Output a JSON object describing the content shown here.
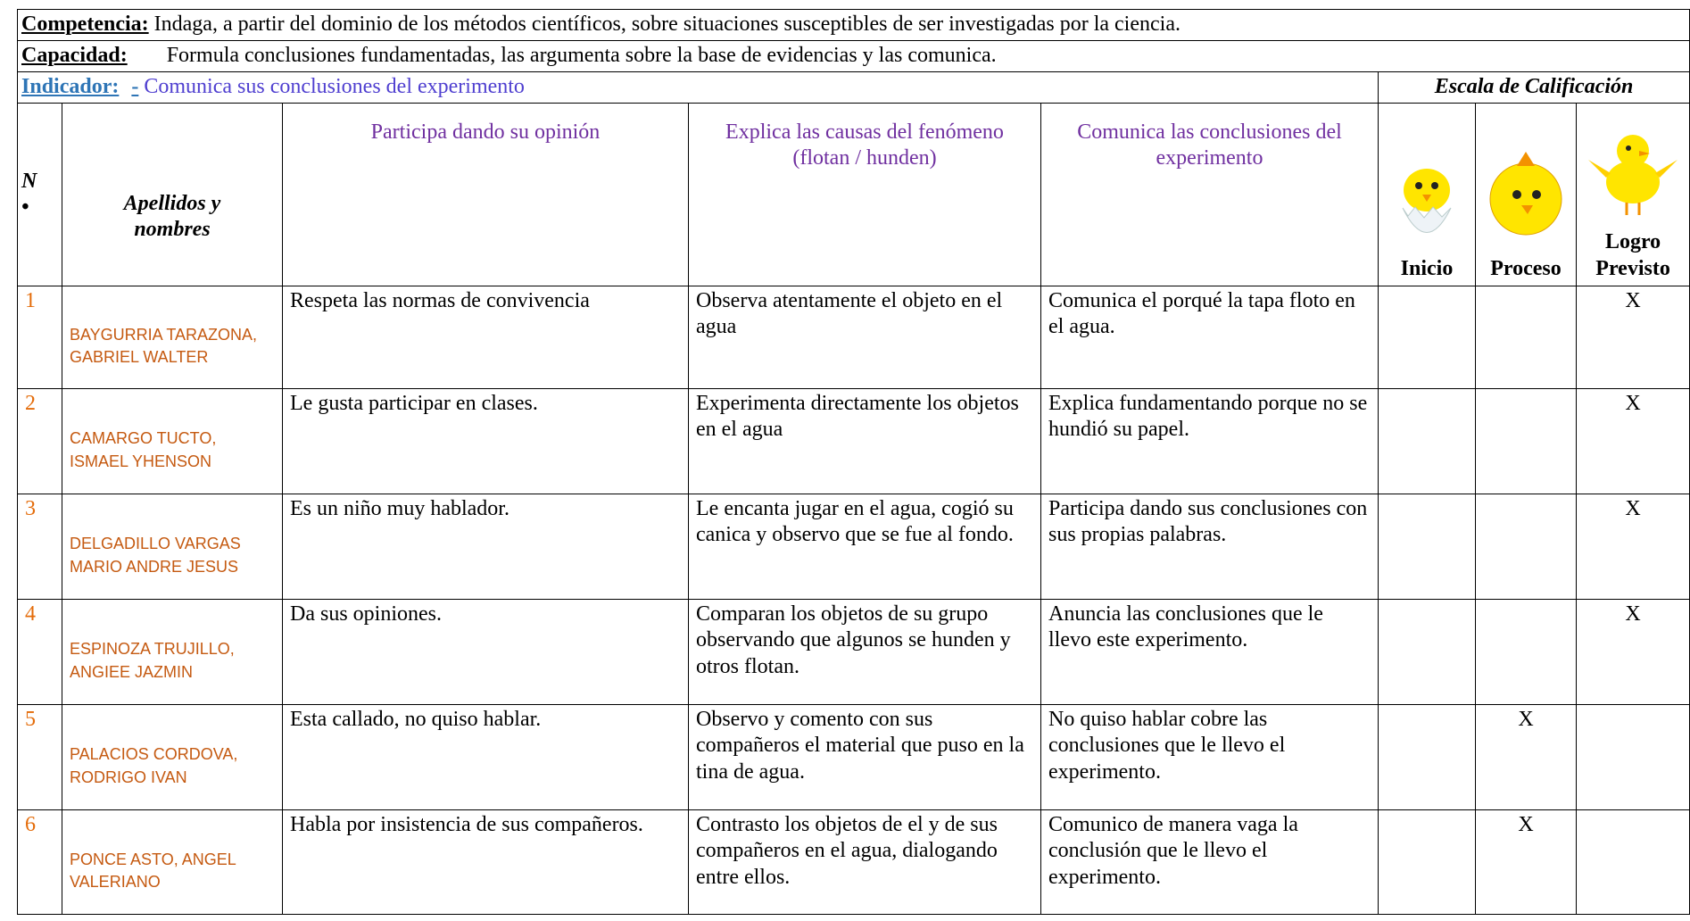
{
  "header": {
    "competencia_label": "Competencia:",
    "competencia_text": " Indaga, a partir del dominio de los métodos científicos, sobre situaciones susceptibles de ser investigadas por la ciencia.",
    "capacidad_label": "Capacidad:",
    "capacidad_text": "Formula conclusiones fundamentadas, las argumenta sobre la base de evidencias y las comunica.",
    "indicador_label": "Indicador:",
    "indicador_dash": "-",
    "indicador_text": "Comunica sus conclusiones  del experimento",
    "scale_title": "Escala de Calificación"
  },
  "table": {
    "columns": {
      "number": "N",
      "number_mark": "•",
      "name": "Apellidos y nombres",
      "c1": "Participa dando su opinión",
      "c2": "Explica las causas del fenómeno (flotan / hunden)",
      "c3": "Comunica las conclusiones del experimento",
      "levels": [
        "Inicio",
        "Proceso",
        "Logro Previsto"
      ]
    },
    "rows": [
      {
        "number": "1",
        "name": "BAYGURRIA TARAZONA, GABRIEL WALTER",
        "c1": "Respeta las normas de convivencia",
        "c2": "Observa atentamente el objeto en el agua",
        "c3": "Comunica el porqué la tapa floto en el agua.",
        "grade_col": 2,
        "grade_mark": "X"
      },
      {
        "number": "2",
        "name": "CAMARGO TUCTO, ISMAEL YHENSON",
        "c1": "Le gusta participar en clases.",
        "c2": "Experimenta directamente los objetos en el agua",
        "c3": "Explica fundamentando porque no se hundió su papel.",
        "grade_col": 2,
        "grade_mark": "X"
      },
      {
        "number": "3",
        "name": "DELGADILLO VARGAS MARIO ANDRE JESUS",
        "c1": "Es un niño muy hablador.",
        "c2": "Le encanta jugar en el agua, cogió su canica y observo que se fue al fondo.",
        "c3": "Participa dando sus conclusiones  con sus propias palabras.",
        "grade_col": 2,
        "grade_mark": "X"
      },
      {
        "number": "4",
        "name": "ESPINOZA TRUJILLO, ANGIEE JAZMIN",
        "c1": "Da sus opiniones.",
        "c2": "Comparan los objetos de su grupo observando que algunos se hunden y otros flotan.",
        "c3": "Anuncia las conclusiones que le llevo este experimento.",
        "grade_col": 2,
        "grade_mark": "X"
      },
      {
        "number": "5",
        "name": "PALACIOS CORDOVA, RODRIGO IVAN",
        "c1": "Esta callado, no quiso hablar.",
        "c2": "Observo y comento con sus compañeros  el material que puso en la tina de agua.",
        "c3": "No quiso hablar cobre las conclusiones que le llevo el experimento.",
        "grade_col": 1,
        "grade_mark": "X"
      },
      {
        "number": "6",
        "name": "PONCE ASTO, ANGEL VALERIANO",
        "c1": "Habla por insistencia de sus compañeros.",
        "c2": "Contrasto los objetos de el y de sus compañeros en el agua, dialogando entre ellos.",
        "c3": " Comunico de manera vaga la conclusión que le llevo el experimento.",
        "grade_col": 1,
        "grade_mark": "X"
      }
    ]
  }
}
